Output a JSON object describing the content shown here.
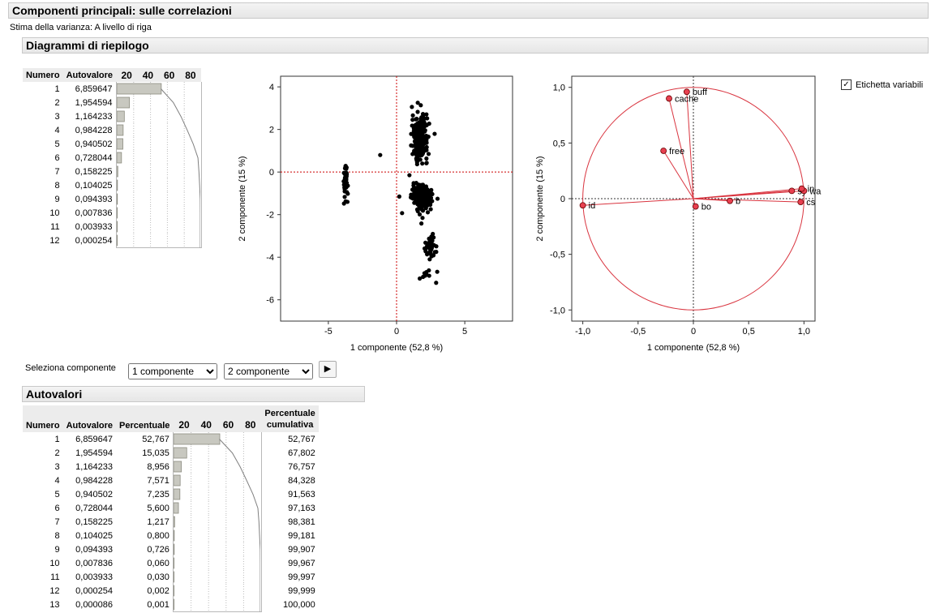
{
  "report": {
    "title": "Componenti principali: sulle correlazioni",
    "variance_note": "Stima della varianza: A livello di riga",
    "summary_title": "Diagrammi di riepilogo"
  },
  "small_table": {
    "headers": [
      "Numero",
      "Autovalore"
    ],
    "bar_ticks": [
      "20",
      "40",
      "60",
      "80"
    ],
    "rows": [
      {
        "n": "1",
        "v": "6,859647"
      },
      {
        "n": "2",
        "v": "1,954594"
      },
      {
        "n": "3",
        "v": "1,164233"
      },
      {
        "n": "4",
        "v": "0,984228"
      },
      {
        "n": "5",
        "v": "0,940502"
      },
      {
        "n": "6",
        "v": "0,728044"
      },
      {
        "n": "7",
        "v": "0,158225"
      },
      {
        "n": "8",
        "v": "0,104025"
      },
      {
        "n": "9",
        "v": "0,094393"
      },
      {
        "n": "10",
        "v": "0,007836"
      },
      {
        "n": "11",
        "v": "0,003933"
      },
      {
        "n": "12",
        "v": "0,000254"
      }
    ]
  },
  "score_plot": {
    "xlabel": "1 componente  (52,8 %)",
    "ylabel": "2 componente  (15 %)",
    "xticks": [
      "-5",
      "0",
      "5"
    ],
    "yticks": [
      "4",
      "2",
      "0",
      "-2",
      "-4",
      "-6"
    ]
  },
  "loading_plot": {
    "xlabel": "1 componente  (52,8 %)",
    "ylabel": "2 componente  (15 %)",
    "xticks": [
      "-1,0",
      "-0,5",
      "0",
      "0,5",
      "1,0"
    ],
    "yticks": [
      "1,0",
      "0,5",
      "0",
      "-0,5",
      "-1,0"
    ],
    "labels": {
      "buff": "buff",
      "cache": "cache",
      "free": "free",
      "id": "id",
      "bo": "bo",
      "bi": "b",
      "sy": "sy",
      "wa": "wa",
      "in": "in",
      "cs": "cs"
    }
  },
  "checkbox": {
    "label": "Etichetta variabili",
    "checked": true
  },
  "selector": {
    "label": "Seleziona componente",
    "first": "1 componente",
    "second": "2 componente"
  },
  "eigen_table": {
    "title": "Autovalori",
    "headers": {
      "numero": "Numero",
      "autovalore": "Autovalore",
      "percentuale": "Percentuale",
      "cumulativa_line1": "Percentuale",
      "cumulativa_line2": "cumulativa"
    },
    "bar_ticks": [
      "20",
      "40",
      "60",
      "80"
    ],
    "rows": [
      {
        "n": "1",
        "v": "6,859647",
        "p": "52,767",
        "c": "52,767"
      },
      {
        "n": "2",
        "v": "1,954594",
        "p": "15,035",
        "c": "67,802"
      },
      {
        "n": "3",
        "v": "1,164233",
        "p": "8,956",
        "c": "76,757"
      },
      {
        "n": "4",
        "v": "0,984228",
        "p": "7,571",
        "c": "84,328"
      },
      {
        "n": "5",
        "v": "0,940502",
        "p": "7,235",
        "c": "91,563"
      },
      {
        "n": "6",
        "v": "0,728044",
        "p": "5,600",
        "c": "97,163"
      },
      {
        "n": "7",
        "v": "0,158225",
        "p": "1,217",
        "c": "98,381"
      },
      {
        "n": "8",
        "v": "0,104025",
        "p": "0,800",
        "c": "99,181"
      },
      {
        "n": "9",
        "v": "0,094393",
        "p": "0,726",
        "c": "99,907"
      },
      {
        "n": "10",
        "v": "0,007836",
        "p": "0,060",
        "c": "99,967"
      },
      {
        "n": "11",
        "v": "0,003933",
        "p": "0,030",
        "c": "99,997"
      },
      {
        "n": "12",
        "v": "0,000254",
        "p": "0,002",
        "c": "99,999"
      },
      {
        "n": "13",
        "v": "0,000086",
        "p": "0,001",
        "c": "100,000"
      }
    ]
  },
  "chart_data": [
    {
      "type": "bar",
      "categories": [
        "1",
        "2",
        "3",
        "4",
        "5",
        "6",
        "7",
        "8",
        "9",
        "10",
        "11",
        "12",
        "13"
      ],
      "values": [
        52.767,
        15.035,
        8.956,
        7.571,
        7.235,
        5.6,
        1.217,
        0.8,
        0.726,
        0.06,
        0.03,
        0.002,
        0.001
      ],
      "cumulative": [
        52.767,
        67.802,
        76.757,
        84.328,
        91.563,
        97.163,
        98.381,
        99.181,
        99.907,
        99.967,
        99.997,
        99.999,
        100.0
      ],
      "xlim": [
        0,
        100
      ]
    },
    {
      "type": "scatter",
      "xlabel": "1 componente  (52,8 %)",
      "ylabel": "2 componente  (15 %)",
      "xlim": [
        -8.5,
        8.5
      ],
      "ylim": [
        -7,
        4.5
      ],
      "clusters": [
        {
          "cx": 1.7,
          "cy": 1.6,
          "sx": 0.28,
          "sy": 0.5,
          "n": 260
        },
        {
          "cx": 1.9,
          "cy": -1.2,
          "sx": 0.35,
          "sy": 0.3,
          "n": 240
        },
        {
          "cx": -3.75,
          "cy": -0.3,
          "sx": 0.08,
          "sy": 0.45,
          "n": 50
        },
        {
          "cx": 2.5,
          "cy": -3.5,
          "sx": 0.18,
          "sy": 0.3,
          "n": 40
        },
        {
          "cx": 2.3,
          "cy": -4.8,
          "sx": 0.25,
          "sy": 0.12,
          "n": 10
        }
      ],
      "points": [
        [
          -1.2,
          0.8
        ],
        [
          0.2,
          -1.15
        ],
        [
          -3.6,
          -1.4
        ],
        [
          2.9,
          -5.2
        ],
        [
          1.7,
          -5.0
        ]
      ]
    },
    {
      "type": "scatter",
      "subtype": "loading-plot",
      "xlabel": "1 componente  (52,8 %)",
      "ylabel": "2 componente  (15 %)",
      "xlim": [
        -1.1,
        1.1
      ],
      "ylim": [
        -1.1,
        1.1
      ],
      "points": [
        {
          "name": "buff",
          "x": -0.06,
          "y": 0.96
        },
        {
          "name": "cache",
          "x": -0.22,
          "y": 0.9
        },
        {
          "name": "free",
          "x": -0.27,
          "y": 0.43
        },
        {
          "name": "id",
          "x": -1.0,
          "y": -0.06
        },
        {
          "name": "bo",
          "x": 0.02,
          "y": -0.07
        },
        {
          "name": "b",
          "x": 0.33,
          "y": -0.02
        },
        {
          "name": "sy",
          "x": 0.89,
          "y": 0.07
        },
        {
          "name": "wa",
          "x": 1.0,
          "y": 0.07
        },
        {
          "name": "in",
          "x": 0.98,
          "y": 0.09
        },
        {
          "name": "cs",
          "x": 0.97,
          "y": -0.03
        }
      ]
    }
  ]
}
